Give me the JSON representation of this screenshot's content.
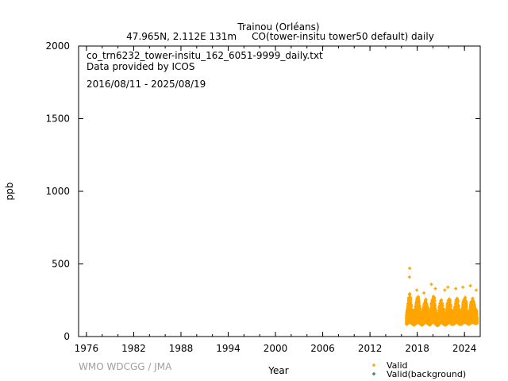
{
  "chart_data": {
    "type": "scatter",
    "title": "Trainou (Orléans)",
    "subtitle": "47.965N, 2.112E 131m     CO(tower-insitu tower50 default) daily",
    "annotations": [
      "co_trn6232_tower-insitu_162_6051-9999_daily.txt",
      "Data provided by ICOS",
      "2016/08/11 - 2025/08/19"
    ],
    "xlabel": "Year",
    "ylabel": "ppb",
    "xlim": [
      1975,
      2026
    ],
    "ylim": [
      0,
      2000
    ],
    "xticks": [
      1976,
      1982,
      1988,
      1994,
      2000,
      2006,
      2012,
      2018,
      2024
    ],
    "yticks": [
      0,
      500,
      1000,
      1500,
      2000
    ],
    "grid": false,
    "legend_position": "bottom-right",
    "watermark": "WMO WDCGG / JMA",
    "series": [
      {
        "name": "Valid",
        "color": "#ffa500",
        "envelope_year_low_high": [
          [
            2016.65,
            85,
            160
          ],
          [
            2016.9,
            95,
            250
          ],
          [
            2017.05,
            100,
            300
          ],
          [
            2017.3,
            90,
            200
          ],
          [
            2017.6,
            80,
            140
          ],
          [
            2017.85,
            90,
            230
          ],
          [
            2018.1,
            100,
            290
          ],
          [
            2018.35,
            90,
            200
          ],
          [
            2018.6,
            80,
            140
          ],
          [
            2018.85,
            90,
            220
          ],
          [
            2019.1,
            100,
            260
          ],
          [
            2019.35,
            90,
            190
          ],
          [
            2019.6,
            80,
            140
          ],
          [
            2019.85,
            95,
            250
          ],
          [
            2020.1,
            100,
            290
          ],
          [
            2020.35,
            85,
            180
          ],
          [
            2020.6,
            75,
            130
          ],
          [
            2020.85,
            90,
            230
          ],
          [
            2021.1,
            100,
            260
          ],
          [
            2021.35,
            85,
            180
          ],
          [
            2021.6,
            80,
            140
          ],
          [
            2021.85,
            90,
            240
          ],
          [
            2022.1,
            100,
            270
          ],
          [
            2022.35,
            85,
            180
          ],
          [
            2022.6,
            85,
            140
          ],
          [
            2022.85,
            95,
            240
          ],
          [
            2023.1,
            100,
            280
          ],
          [
            2023.35,
            85,
            180
          ],
          [
            2023.6,
            85,
            140
          ],
          [
            2023.85,
            95,
            240
          ],
          [
            2024.1,
            100,
            280
          ],
          [
            2024.35,
            90,
            180
          ],
          [
            2024.6,
            85,
            140
          ],
          [
            2024.85,
            95,
            240
          ],
          [
            2025.1,
            100,
            270
          ],
          [
            2025.35,
            90,
            200
          ],
          [
            2025.6,
            90,
            170
          ]
        ],
        "outliers": [
          [
            2017.0,
            410
          ],
          [
            2017.05,
            470
          ],
          [
            2017.95,
            320
          ],
          [
            2018.85,
            300
          ],
          [
            2019.8,
            360
          ],
          [
            2020.3,
            330
          ],
          [
            2021.5,
            320
          ],
          [
            2021.9,
            340
          ],
          [
            2022.9,
            330
          ],
          [
            2023.8,
            340
          ],
          [
            2024.75,
            350
          ],
          [
            2025.5,
            320
          ]
        ]
      },
      {
        "name": "Valid(background)",
        "color": "#2e8b57",
        "envelope_year_low_high": [],
        "outliers": []
      }
    ]
  }
}
